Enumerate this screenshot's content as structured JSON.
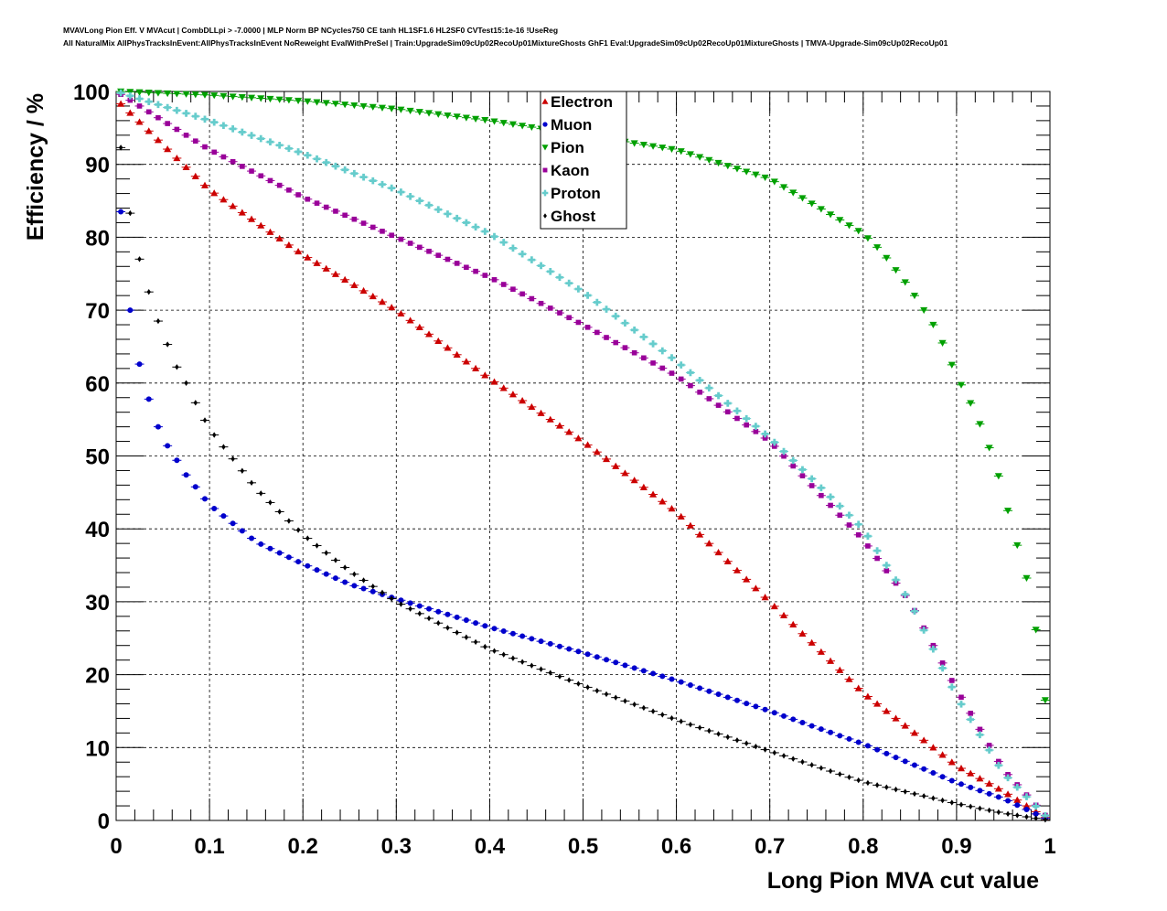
{
  "header": {
    "line1": "MVAVLong Pion Eff. V MVAcut | CombDLLpi > -7.0000 | MLP Norm BP NCycles750 CE tanh HL1SF1.6 HL2SF0 CVTest15:1e-16 !UseReg",
    "line2": "All NaturalMix AllPhysTracksInEvent:AllPhysTracksInEvent NoReweight EvalWithPreSel | Train:UpgradeSim09cUp02RecoUp01MixtureGhosts GhF1 Eval:UpgradeSim09cUp02RecoUp01MixtureGhosts | TMVA-Upgrade-Sim09cUp02RecoUp01"
  },
  "chart_data": {
    "type": "scatter",
    "xlabel": "Long Pion MVA cut value",
    "ylabel": "Efficiency / %",
    "xlim": [
      0,
      1
    ],
    "ylim": [
      0,
      100
    ],
    "xticks": [
      "0",
      "0.1",
      "0.2",
      "0.3",
      "0.4",
      "0.5",
      "0.6",
      "0.7",
      "0.8",
      "0.9",
      "1"
    ],
    "yticks": [
      "0",
      "10",
      "20",
      "30",
      "40",
      "50",
      "60",
      "70",
      "80",
      "90",
      "100"
    ],
    "grid": true,
    "legend_position": "top-center",
    "series": [
      {
        "name": "Electron",
        "marker": "triangle-up",
        "color": "#cc0000",
        "anchors": [
          [
            0.005,
            98.3
          ],
          [
            0.1,
            86.5
          ],
          [
            0.2,
            77.6
          ],
          [
            0.3,
            70.0
          ],
          [
            0.4,
            60.6
          ],
          [
            0.5,
            52.0
          ],
          [
            0.6,
            42.3
          ],
          [
            0.7,
            30.0
          ],
          [
            0.8,
            17.5
          ],
          [
            0.85,
            12.5
          ],
          [
            0.9,
            7.5
          ],
          [
            0.95,
            4.0
          ],
          [
            1.0,
            0.0
          ]
        ]
      },
      {
        "name": "Muon",
        "marker": "circle",
        "color": "#0000cc",
        "anchors": [
          [
            0.005,
            83.5
          ],
          [
            0.015,
            70.0
          ],
          [
            0.025,
            62.6
          ],
          [
            0.035,
            57.8
          ],
          [
            0.045,
            54.0
          ],
          [
            0.055,
            51.4
          ],
          [
            0.065,
            49.4
          ],
          [
            0.075,
            47.4
          ],
          [
            0.1,
            43.3
          ],
          [
            0.15,
            38.2
          ],
          [
            0.2,
            35.2
          ],
          [
            0.25,
            32.4
          ],
          [
            0.3,
            30.4
          ],
          [
            0.4,
            26.5
          ],
          [
            0.5,
            23.0
          ],
          [
            0.6,
            19.2
          ],
          [
            0.7,
            15.0
          ],
          [
            0.8,
            10.5
          ],
          [
            0.9,
            5.2
          ],
          [
            0.95,
            3.0
          ],
          [
            1.0,
            0.0
          ]
        ]
      },
      {
        "name": "Pion",
        "marker": "triangle-down",
        "color": "#00a000",
        "anchors": [
          [
            0.005,
            100.0
          ],
          [
            0.1,
            99.5
          ],
          [
            0.2,
            98.7
          ],
          [
            0.3,
            97.6
          ],
          [
            0.4,
            96.0
          ],
          [
            0.5,
            94.0
          ],
          [
            0.6,
            92.0
          ],
          [
            0.7,
            88.0
          ],
          [
            0.8,
            80.5
          ],
          [
            0.82,
            78.0
          ],
          [
            0.85,
            73.0
          ],
          [
            0.88,
            67.0
          ],
          [
            0.9,
            61.0
          ],
          [
            0.92,
            56.0
          ],
          [
            0.94,
            49.5
          ],
          [
            0.95,
            45.0
          ],
          [
            0.96,
            40.0
          ],
          [
            0.98,
            31.0
          ],
          [
            0.995,
            16.5
          ]
        ]
      },
      {
        "name": "Kaon",
        "marker": "square",
        "color": "#990099",
        "anchors": [
          [
            0.005,
            99.6
          ],
          [
            0.1,
            92.0
          ],
          [
            0.2,
            85.5
          ],
          [
            0.3,
            80.0
          ],
          [
            0.4,
            74.5
          ],
          [
            0.5,
            68.0
          ],
          [
            0.6,
            61.0
          ],
          [
            0.7,
            52.0
          ],
          [
            0.8,
            38.5
          ],
          [
            0.85,
            30.0
          ],
          [
            0.9,
            18.0
          ],
          [
            0.95,
            7.0
          ],
          [
            1.0,
            0.0
          ]
        ]
      },
      {
        "name": "Proton",
        "marker": "cross",
        "color": "#66cccc",
        "anchors": [
          [
            0.005,
            99.8
          ],
          [
            0.1,
            96.0
          ],
          [
            0.2,
            91.5
          ],
          [
            0.3,
            86.5
          ],
          [
            0.4,
            80.5
          ],
          [
            0.5,
            72.5
          ],
          [
            0.6,
            63.0
          ],
          [
            0.7,
            52.5
          ],
          [
            0.8,
            40.0
          ],
          [
            0.85,
            30.0
          ],
          [
            0.9,
            17.0
          ],
          [
            0.95,
            6.5
          ],
          [
            1.0,
            0.0
          ]
        ]
      },
      {
        "name": "Ghost",
        "marker": "diamond",
        "color": "#000000",
        "anchors": [
          [
            0.005,
            92.3
          ],
          [
            0.015,
            83.3
          ],
          [
            0.025,
            77.0
          ],
          [
            0.035,
            72.5
          ],
          [
            0.045,
            68.5
          ],
          [
            0.055,
            65.3
          ],
          [
            0.065,
            62.2
          ],
          [
            0.075,
            60.0
          ],
          [
            0.085,
            57.3
          ],
          [
            0.1,
            53.7
          ],
          [
            0.15,
            45.5
          ],
          [
            0.2,
            39.2
          ],
          [
            0.25,
            34.2
          ],
          [
            0.3,
            30.0
          ],
          [
            0.4,
            23.5
          ],
          [
            0.5,
            18.5
          ],
          [
            0.6,
            13.8
          ],
          [
            0.7,
            9.5
          ],
          [
            0.8,
            5.3
          ],
          [
            0.9,
            2.3
          ],
          [
            0.95,
            1.0
          ],
          [
            1.0,
            0.0
          ]
        ]
      }
    ]
  }
}
